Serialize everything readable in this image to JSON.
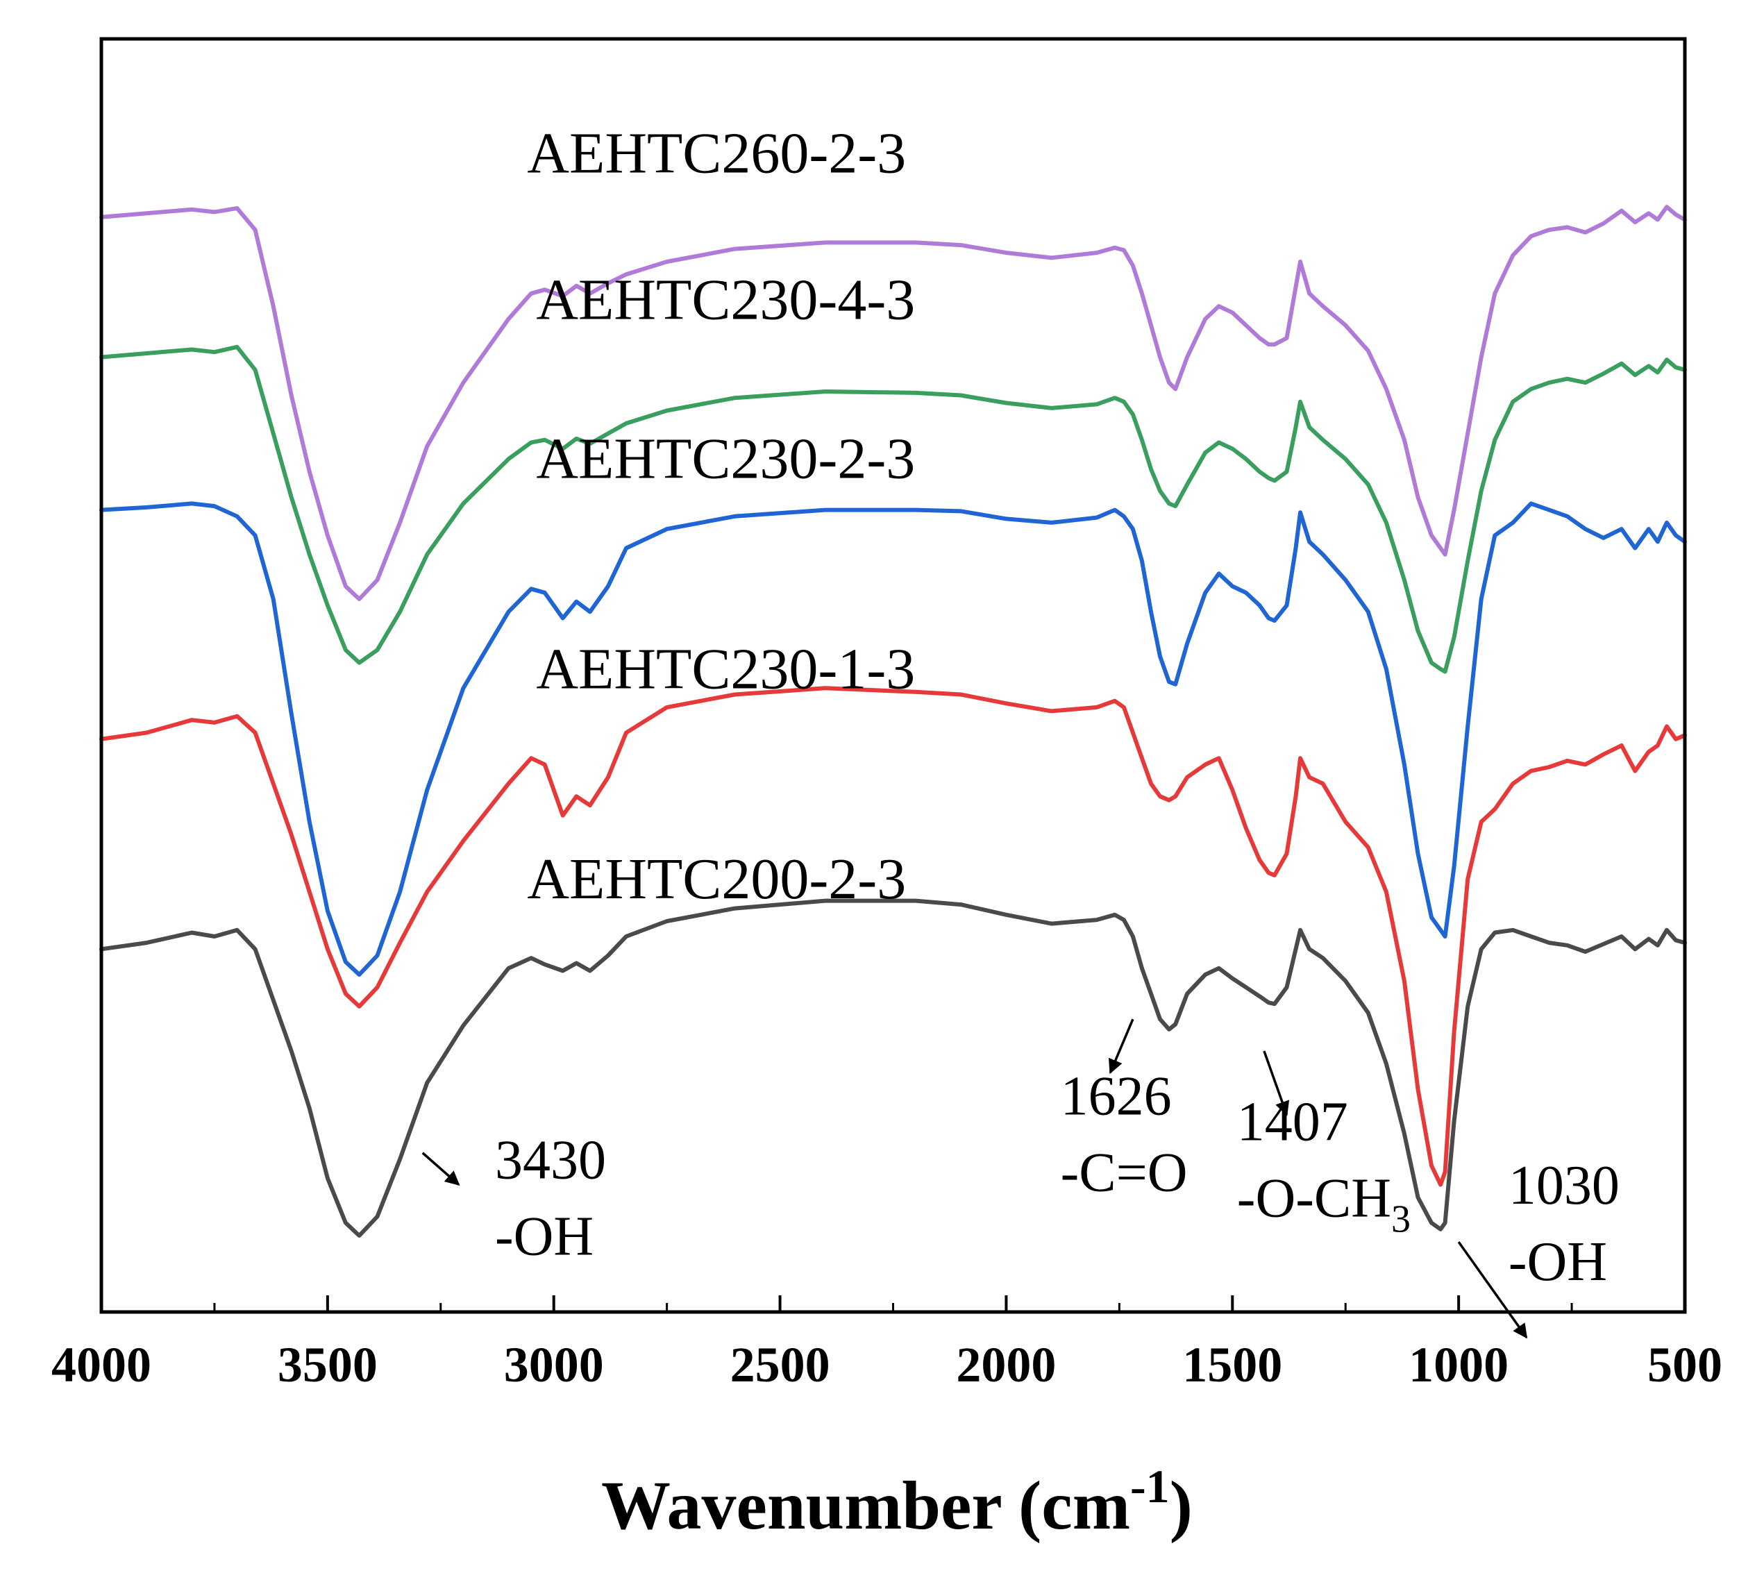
{
  "chart_data": {
    "type": "line",
    "title": "",
    "xlabel": "Wavenumber (cm",
    "xlabel_sup": "-1",
    "xlabel_close": ")",
    "ylabel": "",
    "xlim": [
      4000,
      500
    ],
    "ylim": [
      0,
      100
    ],
    "yaxis_ticks_visible": false,
    "x_ticks": [
      4000,
      3500,
      3000,
      2500,
      2000,
      1500,
      1000,
      500
    ],
    "x_tick_labels": [
      "4000",
      "3500",
      "3000",
      "2500",
      "2000",
      "1500",
      "1000",
      "500"
    ],
    "y_units": "Transmittance (arbitrary, offset)",
    "series": [
      {
        "name": "AEHTC260-2-3",
        "color": "#b07ad8",
        "x": [
          4000,
          3900,
          3800,
          3750,
          3700,
          3660,
          3620,
          3580,
          3540,
          3500,
          3460,
          3430,
          3390,
          3340,
          3280,
          3200,
          3100,
          3050,
          3020,
          2980,
          2950,
          2920,
          2880,
          2840,
          2750,
          2600,
          2400,
          2200,
          2100,
          2000,
          1900,
          1800,
          1760,
          1740,
          1720,
          1700,
          1680,
          1660,
          1640,
          1626,
          1600,
          1560,
          1530,
          1500,
          1470,
          1440,
          1420,
          1407,
          1380,
          1360,
          1350,
          1330,
          1300,
          1250,
          1200,
          1160,
          1120,
          1090,
          1060,
          1040,
          1030,
          1010,
          980,
          950,
          920,
          880,
          840,
          800,
          760,
          720,
          680,
          640,
          610,
          580,
          560,
          540,
          520,
          500
        ],
        "y": [
          86.0,
          86.3,
          86.6,
          86.4,
          86.7,
          85.0,
          79.0,
          72.0,
          66.0,
          61.0,
          57.0,
          56.0,
          57.5,
          62.0,
          68.0,
          73.0,
          78.0,
          80.0,
          80.3,
          79.8,
          80.6,
          80.0,
          80.8,
          81.5,
          82.5,
          83.5,
          84.0,
          84.0,
          83.8,
          83.2,
          82.8,
          83.2,
          83.6,
          83.4,
          82.2,
          80.0,
          77.5,
          75.0,
          73.0,
          72.5,
          75.0,
          78.0,
          79.0,
          78.5,
          77.5,
          76.5,
          76.0,
          76.0,
          76.5,
          80.5,
          82.5,
          80.0,
          79.0,
          77.5,
          75.5,
          72.5,
          68.5,
          64.0,
          61.0,
          60.0,
          59.5,
          63.0,
          69.0,
          75.0,
          80.0,
          83.0,
          84.5,
          85.0,
          85.2,
          84.8,
          85.5,
          86.5,
          85.6,
          86.3,
          85.8,
          86.8,
          86.2,
          85.8
        ]
      },
      {
        "name": "AEHTC230-4-3",
        "color": "#3a9e5f",
        "x": [
          4000,
          3900,
          3800,
          3750,
          3700,
          3660,
          3620,
          3580,
          3540,
          3500,
          3460,
          3430,
          3390,
          3340,
          3280,
          3200,
          3100,
          3050,
          3020,
          2980,
          2950,
          2920,
          2880,
          2840,
          2750,
          2600,
          2400,
          2200,
          2100,
          2000,
          1900,
          1800,
          1760,
          1740,
          1720,
          1700,
          1680,
          1660,
          1640,
          1626,
          1600,
          1560,
          1530,
          1500,
          1470,
          1440,
          1420,
          1407,
          1380,
          1360,
          1350,
          1330,
          1300,
          1250,
          1200,
          1160,
          1120,
          1090,
          1060,
          1040,
          1030,
          1010,
          980,
          950,
          920,
          880,
          840,
          800,
          760,
          720,
          680,
          640,
          610,
          580,
          560,
          540,
          520,
          500
        ],
        "y": [
          75.0,
          75.3,
          75.6,
          75.4,
          75.8,
          74.0,
          69.0,
          64.0,
          59.5,
          55.5,
          52.0,
          51.0,
          52.0,
          55.0,
          59.5,
          63.5,
          67.0,
          68.3,
          68.5,
          67.8,
          68.6,
          68.2,
          69.0,
          69.8,
          70.8,
          71.8,
          72.3,
          72.2,
          72.0,
          71.4,
          71.0,
          71.3,
          71.8,
          71.5,
          70.5,
          68.5,
          66.2,
          64.5,
          63.5,
          63.3,
          65.0,
          67.5,
          68.3,
          67.8,
          67.0,
          66.0,
          65.5,
          65.3,
          66.0,
          69.5,
          71.5,
          69.5,
          68.5,
          67.0,
          65.0,
          62.0,
          57.5,
          53.5,
          51.0,
          50.5,
          50.3,
          53.0,
          59.0,
          64.5,
          68.5,
          71.5,
          72.5,
          73.0,
          73.3,
          73.0,
          73.7,
          74.5,
          73.6,
          74.3,
          73.8,
          74.8,
          74.2,
          74.0
        ]
      },
      {
        "name": "AEHTC230-2-3",
        "color": "#1f66d4",
        "x": [
          4000,
          3900,
          3800,
          3750,
          3700,
          3660,
          3620,
          3580,
          3540,
          3500,
          3460,
          3430,
          3390,
          3340,
          3280,
          3200,
          3100,
          3050,
          3020,
          2980,
          2950,
          2920,
          2880,
          2840,
          2750,
          2600,
          2400,
          2200,
          2100,
          2000,
          1900,
          1800,
          1760,
          1740,
          1720,
          1700,
          1680,
          1660,
          1640,
          1626,
          1600,
          1560,
          1530,
          1500,
          1470,
          1440,
          1420,
          1407,
          1380,
          1360,
          1350,
          1330,
          1300,
          1250,
          1200,
          1160,
          1120,
          1090,
          1060,
          1040,
          1030,
          1010,
          980,
          950,
          920,
          880,
          840,
          800,
          760,
          720,
          680,
          640,
          610,
          580,
          560,
          540,
          520,
          500
        ],
        "y": [
          63.0,
          63.2,
          63.5,
          63.3,
          62.5,
          61.0,
          56.0,
          47.0,
          38.5,
          31.5,
          27.5,
          26.5,
          28.0,
          33.0,
          41.0,
          49.0,
          55.0,
          56.8,
          56.5,
          54.5,
          55.8,
          55.0,
          57.0,
          60.0,
          61.5,
          62.5,
          63.0,
          63.0,
          62.9,
          62.3,
          62.0,
          62.4,
          63.0,
          62.5,
          61.5,
          59.0,
          55.0,
          51.5,
          49.5,
          49.3,
          52.5,
          56.5,
          58.0,
          57.0,
          56.5,
          55.5,
          54.5,
          54.3,
          55.5,
          60.0,
          62.8,
          60.5,
          59.5,
          57.5,
          55.0,
          50.5,
          43.0,
          36.0,
          31.0,
          30.0,
          29.5,
          35.0,
          46.0,
          56.0,
          61.0,
          62.0,
          63.5,
          63.0,
          62.5,
          61.5,
          60.8,
          61.5,
          60.0,
          61.5,
          60.5,
          62.0,
          61.0,
          60.5
        ]
      },
      {
        "name": "AEHTC230-1-3",
        "color": "#e63a3a",
        "x": [
          4000,
          3900,
          3800,
          3750,
          3700,
          3660,
          3620,
          3580,
          3540,
          3500,
          3460,
          3430,
          3390,
          3340,
          3280,
          3200,
          3100,
          3050,
          3020,
          2980,
          2950,
          2920,
          2880,
          2840,
          2750,
          2600,
          2400,
          2200,
          2100,
          2000,
          1900,
          1800,
          1760,
          1740,
          1720,
          1700,
          1680,
          1660,
          1640,
          1626,
          1600,
          1560,
          1530,
          1500,
          1470,
          1440,
          1420,
          1407,
          1380,
          1360,
          1350,
          1330,
          1300,
          1250,
          1200,
          1160,
          1120,
          1090,
          1060,
          1040,
          1030,
          1010,
          980,
          950,
          920,
          880,
          840,
          800,
          760,
          720,
          680,
          640,
          610,
          580,
          560,
          540,
          520,
          500
        ],
        "y": [
          45.0,
          45.5,
          46.5,
          46.3,
          46.8,
          45.5,
          41.5,
          37.5,
          33.0,
          28.5,
          25.0,
          24.0,
          25.5,
          29.0,
          33.0,
          37.0,
          41.5,
          43.5,
          43.0,
          39.0,
          40.5,
          39.8,
          42.0,
          45.5,
          47.5,
          48.5,
          49.0,
          48.7,
          48.5,
          47.8,
          47.2,
          47.5,
          48.0,
          47.5,
          45.5,
          43.5,
          41.5,
          40.5,
          40.2,
          40.5,
          42.0,
          43.0,
          43.5,
          41.0,
          38.0,
          35.5,
          34.5,
          34.3,
          36.0,
          40.5,
          43.5,
          42.0,
          41.5,
          38.5,
          36.5,
          33.0,
          26.0,
          17.5,
          11.5,
          10.0,
          11.0,
          22.0,
          34.0,
          38.5,
          39.5,
          41.5,
          42.5,
          42.8,
          43.3,
          43.0,
          43.8,
          44.5,
          42.5,
          44.0,
          44.5,
          46.0,
          45.0,
          45.3
        ]
      },
      {
        "name": "AEHTC200-2-3",
        "color": "#4a4a4a",
        "x": [
          4000,
          3900,
          3800,
          3750,
          3700,
          3660,
          3620,
          3580,
          3540,
          3500,
          3460,
          3430,
          3390,
          3340,
          3280,
          3200,
          3100,
          3050,
          3020,
          2980,
          2950,
          2920,
          2880,
          2840,
          2750,
          2600,
          2400,
          2200,
          2100,
          2000,
          1900,
          1800,
          1760,
          1740,
          1720,
          1700,
          1680,
          1660,
          1640,
          1626,
          1600,
          1560,
          1530,
          1500,
          1470,
          1440,
          1420,
          1407,
          1380,
          1360,
          1350,
          1330,
          1300,
          1250,
          1200,
          1160,
          1120,
          1090,
          1060,
          1040,
          1030,
          1010,
          980,
          950,
          920,
          880,
          840,
          800,
          760,
          720,
          680,
          640,
          610,
          580,
          560,
          540,
          520,
          500
        ],
        "y": [
          28.5,
          29.0,
          29.8,
          29.5,
          30.0,
          28.5,
          24.5,
          20.5,
          16.0,
          10.5,
          7.0,
          6.0,
          7.5,
          12.0,
          18.0,
          22.5,
          27.0,
          27.8,
          27.3,
          26.8,
          27.4,
          26.8,
          28.0,
          29.5,
          30.7,
          31.7,
          32.3,
          32.3,
          32.0,
          31.2,
          30.5,
          30.8,
          31.2,
          30.8,
          29.5,
          27.0,
          25.0,
          23.0,
          22.2,
          22.6,
          25.0,
          26.5,
          27.0,
          26.2,
          25.5,
          24.8,
          24.3,
          24.2,
          25.5,
          28.5,
          30.0,
          28.5,
          27.8,
          26.0,
          23.5,
          19.5,
          14.0,
          9.0,
          7.0,
          6.5,
          7.0,
          15.0,
          24.0,
          28.5,
          29.8,
          30.0,
          29.5,
          29.0,
          28.8,
          28.3,
          28.9,
          29.5,
          28.5,
          29.3,
          28.8,
          30.0,
          29.2,
          29.0
        ]
      }
    ],
    "series_labels": [
      {
        "text": "AEHTC260-2-3",
        "x": 2640,
        "y": 89.5
      },
      {
        "text": "AEHTC230-4-3",
        "x": 2620,
        "y": 78.0
      },
      {
        "text": "AEHTC230-2-3",
        "x": 2620,
        "y": 65.5
      },
      {
        "text": "AEHTC230-1-3",
        "x": 2620,
        "y": 49.0
      },
      {
        "text": "AEHTC200-2-3",
        "x": 2640,
        "y": 32.5
      }
    ],
    "annotations": [
      {
        "peak": "3430",
        "group": "-OH",
        "label_x": 3130,
        "label_y": 10.5,
        "arrow_from": [
          3290,
          12.5
        ],
        "arrow_to": [
          3210,
          10.0
        ]
      },
      {
        "peak": "1626",
        "group": "-C=O",
        "label_x": 1880,
        "label_y": 15.5,
        "arrow_from": [
          1720,
          23.0
        ],
        "arrow_to": [
          1770,
          18.8
        ]
      },
      {
        "peak": "1407",
        "group": "-O-CH",
        "group_sub": "3",
        "label_x": 1490,
        "label_y": 13.5,
        "arrow_from": [
          1430,
          20.5
        ],
        "arrow_to": [
          1380,
          15.5
        ]
      },
      {
        "peak": "1030",
        "group": "-OH",
        "label_x": 890,
        "label_y": 8.5,
        "arrow_from": [
          1000,
          5.5
        ],
        "arrow_to": [
          850,
          -2.0
        ]
      }
    ]
  }
}
